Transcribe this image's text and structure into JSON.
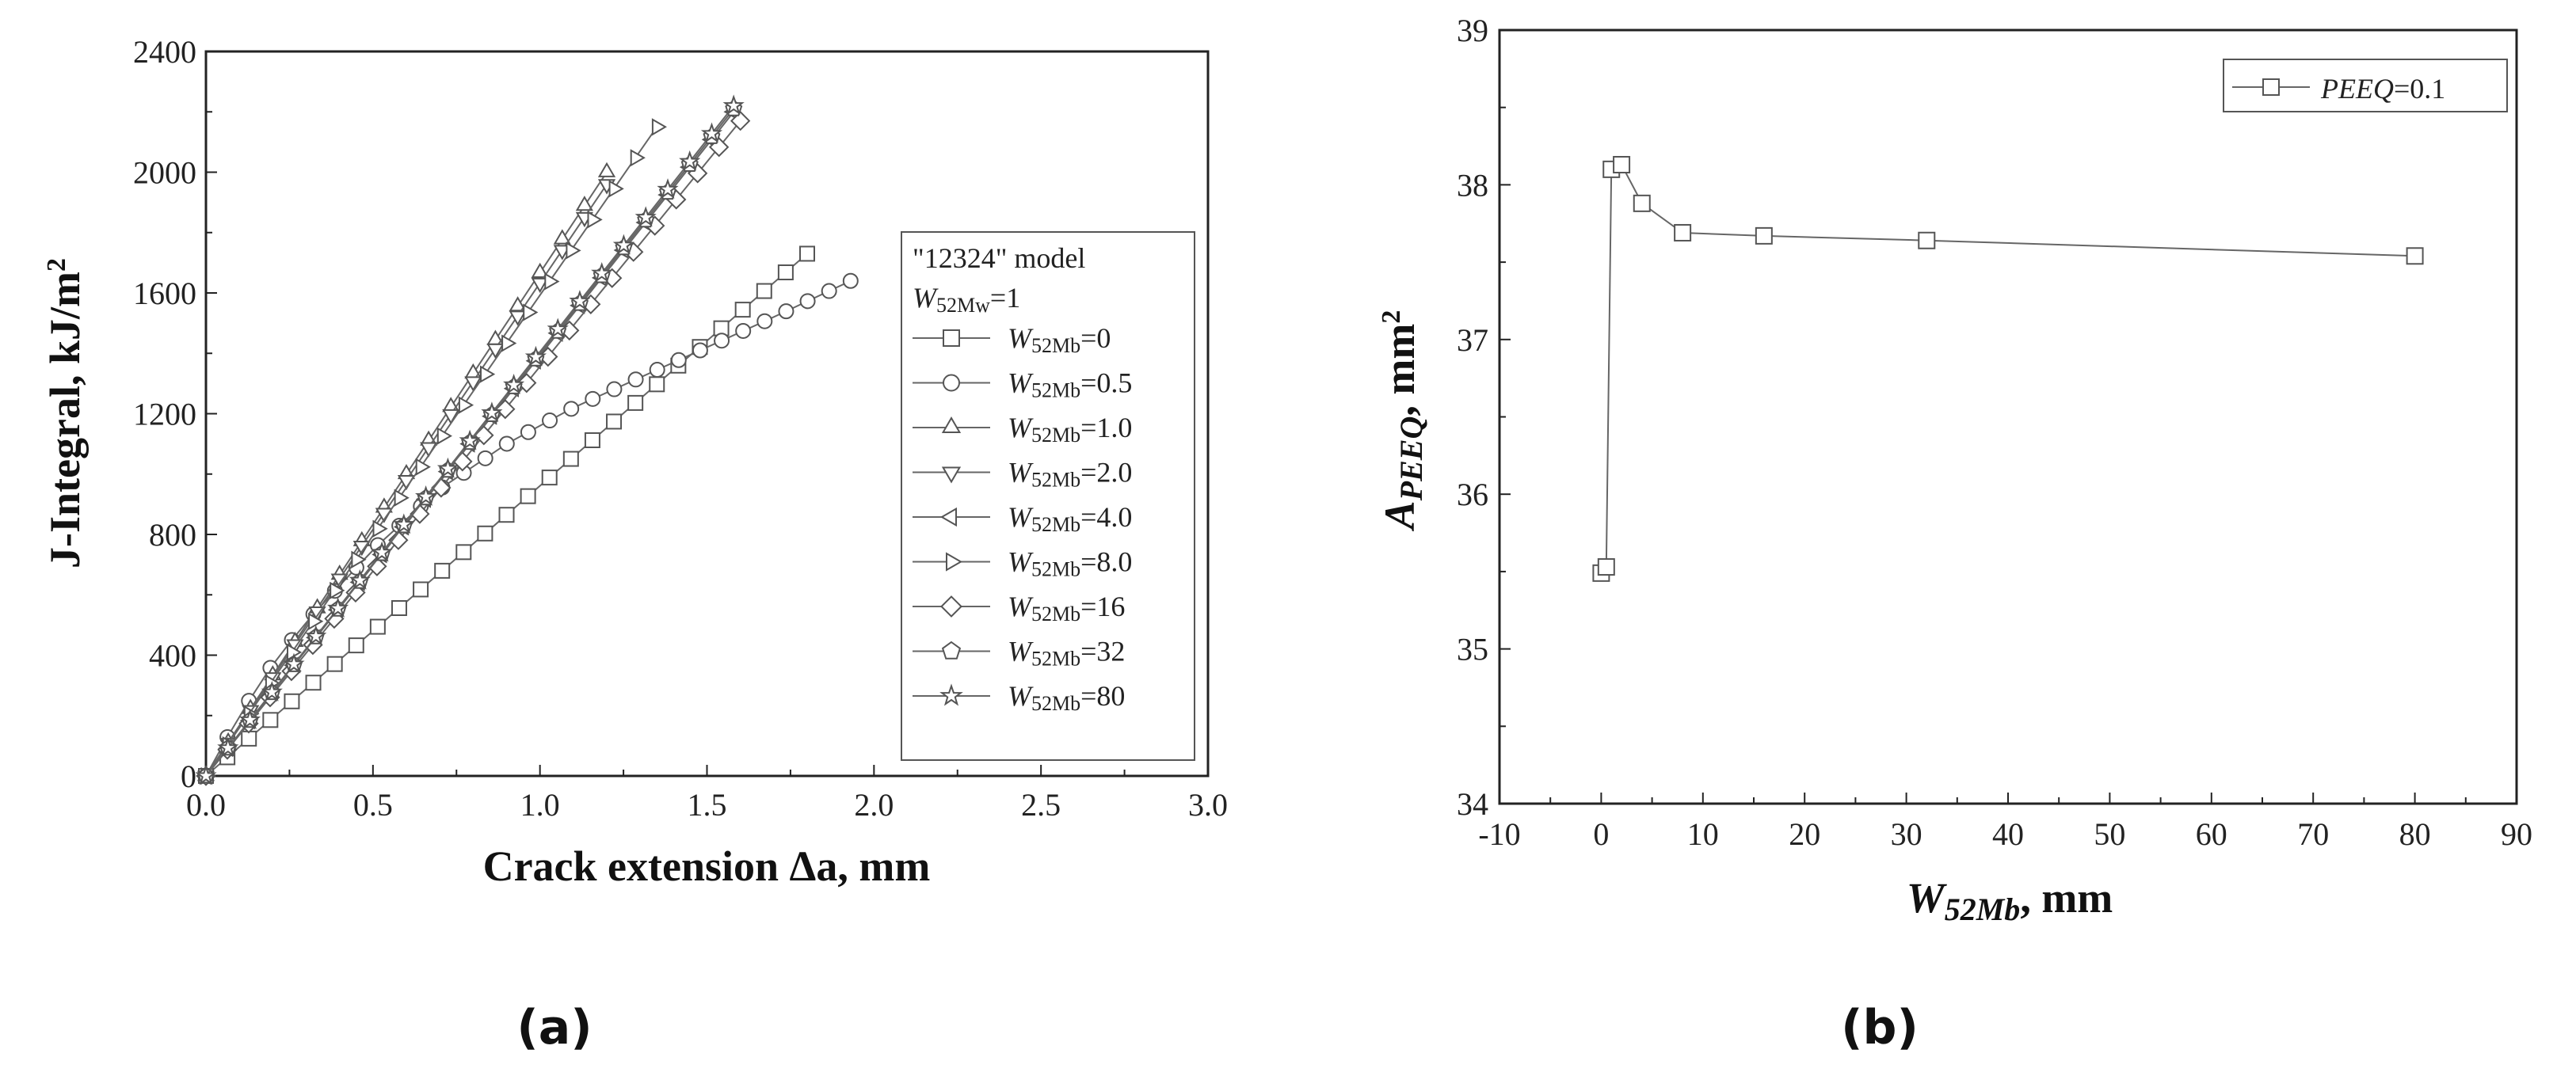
{
  "chart_data": [
    {
      "type": "line",
      "panel_label": "(a)",
      "xlabel": "Crack extension Δa, mm",
      "ylabel": "J-Integral, kJ/m",
      "ylabel_sup": "2",
      "xlim": [
        0,
        3.0
      ],
      "ylim": [
        0,
        2400
      ],
      "xticks": [
        "0.0",
        "0.5",
        "1.0",
        "1.5",
        "2.0",
        "2.5",
        "3.0"
      ],
      "yticks": [
        "0",
        "400",
        "800",
        "1200",
        "1600",
        "2000",
        "2400"
      ],
      "grid": false,
      "legend": {
        "placement": "right",
        "header1": "\"12324\" model",
        "header2_italic": "W",
        "header2_sub": "52Mw",
        "header2_rest": "=1"
      },
      "series": [
        {
          "name_italic": "W",
          "name_sub": "52Mb",
          "name_rest": "=0",
          "marker": "square",
          "x": [
            0,
            1.8
          ],
          "y": [
            0,
            1730
          ]
        },
        {
          "name_italic": "W",
          "name_sub": "52Mb",
          "name_rest": "=0.5",
          "marker": "circle",
          "x": [
            0,
            0.1,
            0.2,
            0.3,
            0.5,
            0.7,
            0.9,
            1.1,
            1.3,
            1.5,
            1.7,
            1.93
          ],
          "y": [
            0,
            200,
            370,
            510,
            750,
            950,
            1100,
            1220,
            1320,
            1420,
            1520,
            1640
          ]
        },
        {
          "name_italic": "W",
          "name_sub": "52Mb",
          "name_rest": "=1.0",
          "marker": "triangle-up",
          "x": [
            0,
            1.2
          ],
          "y": [
            0,
            2000
          ]
        },
        {
          "name_italic": "W",
          "name_sub": "52Mb",
          "name_rest": "=2.0",
          "marker": "triangle-down",
          "x": [
            0,
            1.2
          ],
          "y": [
            0,
            1960
          ]
        },
        {
          "name_italic": "W",
          "name_sub": "52Mb",
          "name_rest": "=4.0",
          "marker": "triangle-left",
          "x": [
            0,
            1.58
          ],
          "y": [
            0,
            2200
          ]
        },
        {
          "name_italic": "W",
          "name_sub": "52Mb",
          "name_rest": "=8.0",
          "marker": "triangle-right",
          "x": [
            0,
            1.35
          ],
          "y": [
            0,
            2150
          ]
        },
        {
          "name_italic": "W",
          "name_sub": "52Mb",
          "name_rest": "=16",
          "marker": "diamond",
          "x": [
            0,
            1.6
          ],
          "y": [
            0,
            2170
          ]
        },
        {
          "name_italic": "W",
          "name_sub": "52Mb",
          "name_rest": "=32",
          "marker": "pentagon",
          "x": [
            0,
            1.58
          ],
          "y": [
            0,
            2210
          ]
        },
        {
          "name_italic": "W",
          "name_sub": "52Mb",
          "name_rest": "=80",
          "marker": "star",
          "x": [
            0,
            1.58
          ],
          "y": [
            0,
            2220
          ]
        }
      ]
    },
    {
      "type": "line",
      "panel_label": "(b)",
      "xlabel_italic": "W",
      "xlabel_sub": "52Mb",
      "xlabel_rest": ", mm",
      "ylabel_italic": "A",
      "ylabel_sub": "PEEQ",
      "ylabel_rest": ", mm",
      "ylabel_sup": "2",
      "xlim": [
        -10,
        90
      ],
      "ylim": [
        34,
        39
      ],
      "xticks": [
        "-10",
        "0",
        "10",
        "20",
        "30",
        "40",
        "50",
        "60",
        "70",
        "80",
        "90"
      ],
      "yticks": [
        "34",
        "35",
        "36",
        "37",
        "38",
        "39"
      ],
      "grid": false,
      "legend": {
        "placement": "top-right"
      },
      "series": [
        {
          "name_italic": "PEEQ",
          "name_rest": "=0.1",
          "marker": "square",
          "x": [
            0,
            0.5,
            1,
            2,
            4,
            8,
            16,
            32,
            80
          ],
          "y": [
            35.49,
            35.53,
            38.1,
            38.13,
            37.88,
            37.69,
            37.67,
            37.64,
            37.54
          ]
        }
      ]
    }
  ]
}
